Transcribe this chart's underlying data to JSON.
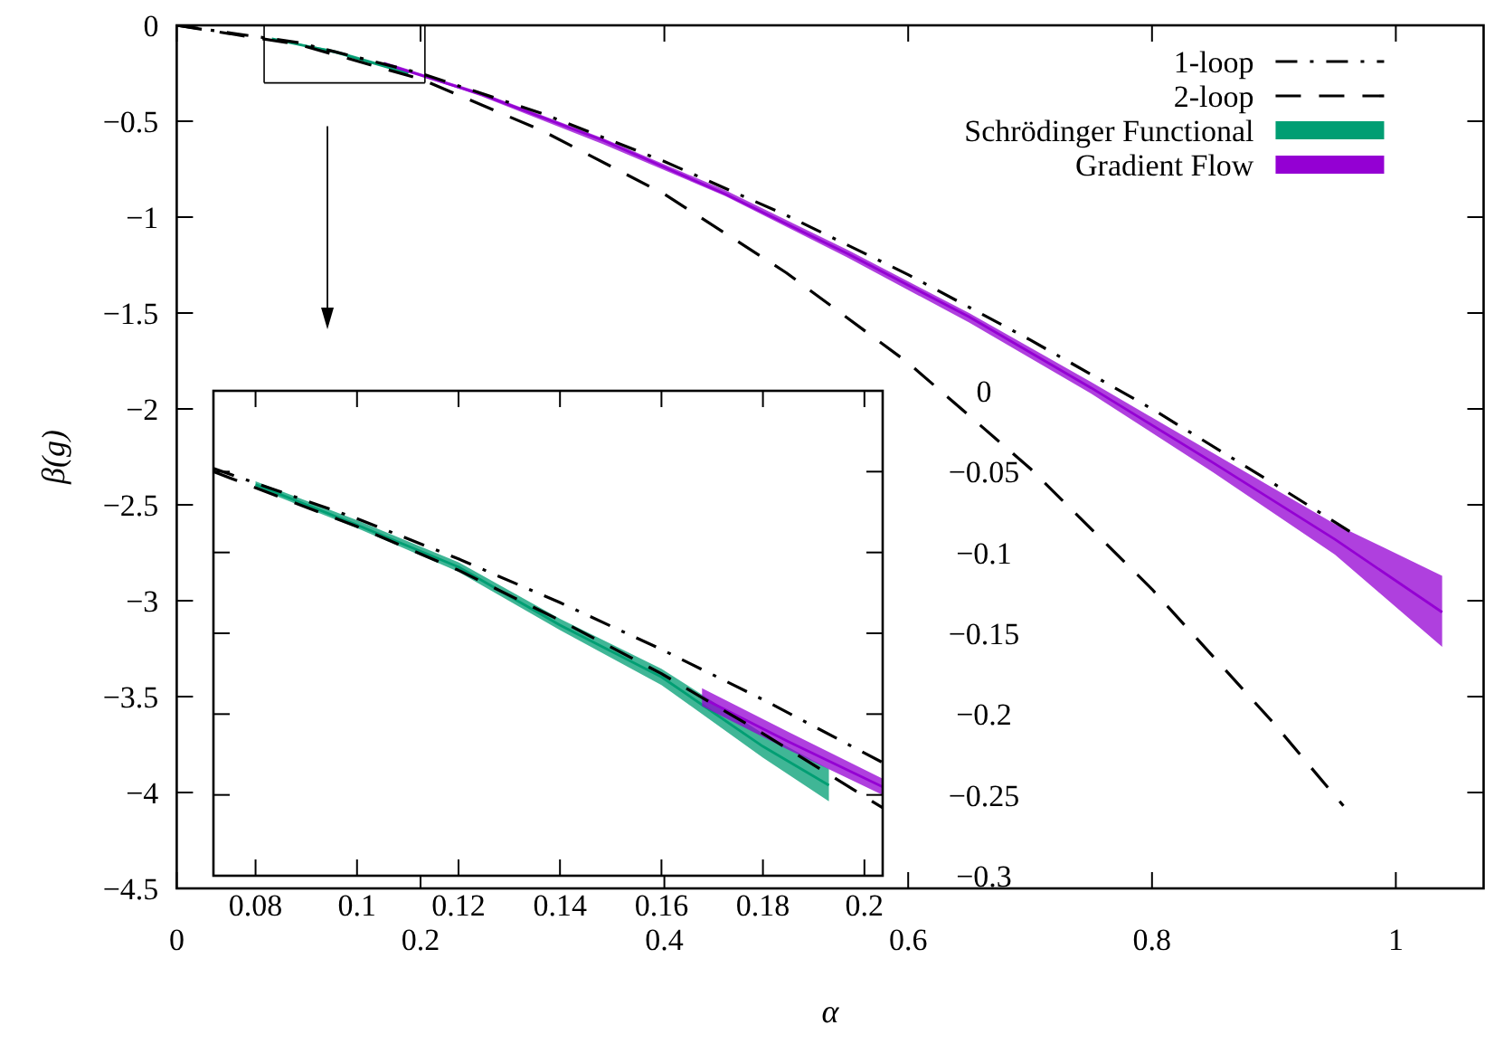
{
  "chart_data": [
    {
      "type": "line",
      "xlabel": "α",
      "ylabel": "β(g)",
      "xlim": [
        0,
        1.072
      ],
      "ylim": [
        -4.5,
        0
      ],
      "xticks": [
        0,
        0.2,
        0.4,
        0.6,
        0.8,
        1
      ],
      "yticks": [
        0,
        -0.5,
        -1,
        -1.5,
        -2,
        -2.5,
        -3,
        -3.5,
        -4,
        -4.5
      ],
      "grid": false,
      "legend": "top right",
      "series": [
        {
          "name": "1-loop",
          "color": "#000000",
          "line_style": "dashdot",
          "x": [
            0,
            0.1,
            0.2,
            0.3,
            0.4,
            0.5,
            0.6,
            0.7,
            0.8,
            0.9,
            0.965
          ],
          "values": [
            0,
            -0.09,
            -0.25,
            -0.46,
            -0.71,
            -0.99,
            -1.3,
            -1.64,
            -2,
            -2.39,
            -2.65
          ]
        },
        {
          "name": "2-loop",
          "color": "#000000",
          "line_style": "dashed",
          "x": [
            0,
            0.1,
            0.2,
            0.3,
            0.4,
            0.5,
            0.6,
            0.7,
            0.8,
            0.9,
            0.957
          ],
          "values": [
            0,
            -0.1,
            -0.28,
            -0.55,
            -0.88,
            -1.29,
            -1.76,
            -2.31,
            -2.94,
            -3.64,
            -4.07
          ]
        },
        {
          "name": "Schrödinger Functional",
          "color": "#009e73",
          "x": [
            0.078,
            0.13,
            0.19
          ],
          "values": [
            -0.07,
            -0.14,
            -0.25
          ],
          "upper": [
            -0.07,
            -0.13,
            -0.24
          ],
          "lower": [
            -0.07,
            -0.14,
            -0.25
          ]
        },
        {
          "name": "Gradient Flow",
          "color": "#9400d3",
          "x": [
            0.17,
            0.25,
            0.35,
            0.45,
            0.55,
            0.65,
            0.75,
            0.85,
            0.95,
            1.038
          ],
          "values": [
            -0.2,
            -0.36,
            -0.6,
            -0.88,
            -1.19,
            -1.52,
            -1.89,
            -2.28,
            -2.68,
            -3.06
          ],
          "upper": [
            -0.19,
            -0.35,
            -0.59,
            -0.86,
            -1.17,
            -1.5,
            -1.86,
            -2.23,
            -2.6,
            -2.87
          ],
          "lower": [
            -0.2,
            -0.37,
            -0.62,
            -0.89,
            -1.21,
            -1.55,
            -1.92,
            -2.33,
            -2.76,
            -3.24
          ]
        }
      ]
    },
    {
      "type": "line",
      "xlim": [
        0.0717,
        0.2036
      ],
      "ylim": [
        -0.3,
        0
      ],
      "xticks": [
        0.08,
        0.1,
        0.12,
        0.14,
        0.16,
        0.18,
        0.2
      ],
      "yticks": [
        0,
        -0.05,
        -0.1,
        -0.15,
        -0.2,
        -0.25,
        -0.3
      ],
      "grid": false,
      "legend": false,
      "series": [
        {
          "color": "#000000",
          "line_style": "dashdot",
          "x": [
            0.0717,
            0.1,
            0.12,
            0.14,
            0.16,
            0.18,
            0.2036
          ],
          "values": [
            -0.048,
            -0.079,
            -0.104,
            -0.131,
            -0.16,
            -0.191,
            -0.23
          ]
        },
        {
          "color": "#000000",
          "line_style": "dashed",
          "x": [
            0.0717,
            0.1,
            0.12,
            0.14,
            0.16,
            0.18,
            0.2036
          ],
          "values": [
            -0.05,
            -0.084,
            -0.111,
            -0.142,
            -0.175,
            -0.212,
            -0.258
          ]
        },
        {
          "color": "#009e73",
          "x": [
            0.08,
            0.1,
            0.12,
            0.14,
            0.16,
            0.18,
            0.193
          ],
          "values": [
            -0.058,
            -0.083,
            -0.109,
            -0.145,
            -0.177,
            -0.22,
            -0.244
          ],
          "upper": [
            -0.056,
            -0.08,
            -0.106,
            -0.141,
            -0.172,
            -0.212,
            -0.234
          ],
          "lower": [
            -0.06,
            -0.085,
            -0.112,
            -0.148,
            -0.182,
            -0.227,
            -0.254
          ]
        },
        {
          "color": "#9400d3",
          "x": [
            0.168,
            0.185,
            0.2036
          ],
          "values": [
            -0.19,
            -0.217,
            -0.245
          ],
          "upper": [
            -0.184,
            -0.211,
            -0.24
          ],
          "lower": [
            -0.195,
            -0.222,
            -0.25
          ]
        }
      ]
    }
  ]
}
